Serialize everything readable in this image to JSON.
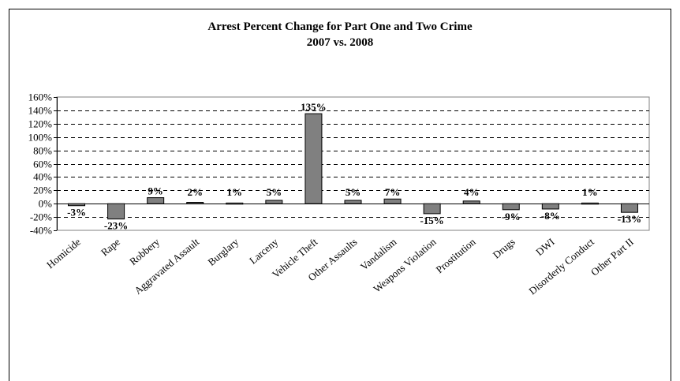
{
  "chart_data": {
    "type": "bar",
    "title": "Arrest Percent Change for Part One and Two Crime",
    "subtitle": "2007 vs. 2008",
    "xlabel": "",
    "ylabel": "",
    "ylim": [
      -40,
      160
    ],
    "ytick_step": 20,
    "y_tick_labels": [
      "160%",
      "140%",
      "120%",
      "100%",
      "80%",
      "60%",
      "40%",
      "20%",
      "0%",
      "-20%",
      "-40%"
    ],
    "grid": true,
    "legend": "none",
    "categories": [
      "Homicide",
      "Rape",
      "Robbery",
      "Aggravated Assault",
      "Burglary",
      "Larceny",
      "Vehicle Theft",
      "Other Assaults",
      "Vandalism",
      "Weapons Violation",
      "Prostitution",
      "Drugs",
      "DWI",
      "Disorderly Conduct",
      "Other Part II"
    ],
    "values": [
      -3,
      -23,
      9,
      2,
      1,
      5,
      135,
      5,
      7,
      -15,
      4,
      -9,
      -8,
      1,
      -13
    ],
    "data_labels": [
      "-3%",
      "-23%",
      "9%",
      "2%",
      "1%",
      "5%",
      "135%",
      "5%",
      "7%",
      "-15%",
      "4%",
      "-9%",
      "-8%",
      "1%",
      "-13%"
    ],
    "bar_color": "#808080"
  }
}
